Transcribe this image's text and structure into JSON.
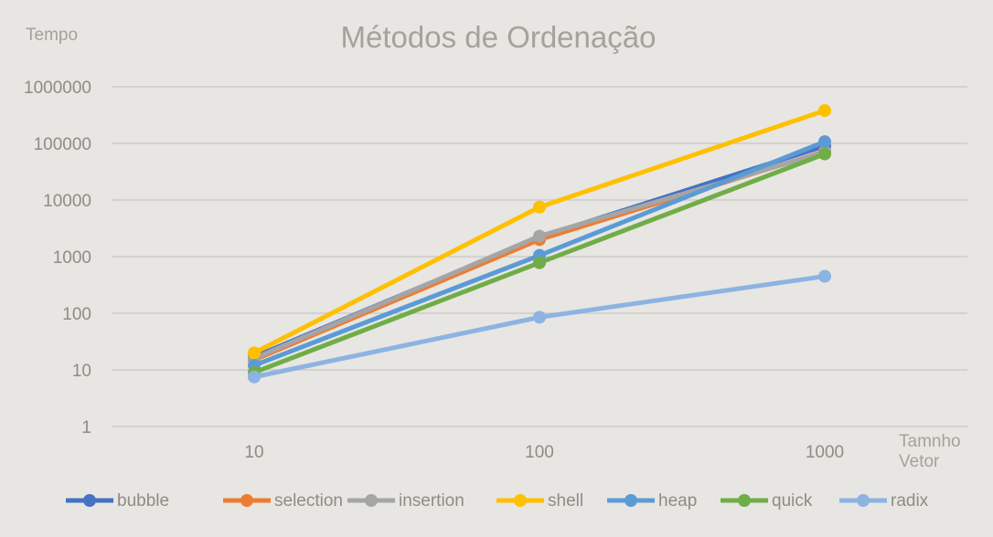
{
  "chart_data": {
    "type": "line",
    "title": "Métodos de Ordenação",
    "ylabel": "Tempo",
    "xlabel": [
      "Tamnho",
      "Vetor"
    ],
    "x": [
      "10",
      "100",
      "1000"
    ],
    "yscale": "log",
    "ylim": [
      1,
      1000000
    ],
    "yticks": [
      "1",
      "10",
      "100",
      "1000",
      "10000",
      "100000",
      "1000000"
    ],
    "grid": "horizontal",
    "legend": "bottom",
    "series": [
      {
        "name": "bubble",
        "color": "#4472c4",
        "values": [
          17,
          2200,
          90000
        ]
      },
      {
        "name": "selection",
        "color": "#ed7d31",
        "values": [
          15,
          2000,
          72000
        ]
      },
      {
        "name": "insertion",
        "color": "#a5a5a5",
        "values": [
          16,
          2300,
          70000
        ]
      },
      {
        "name": "shell",
        "color": "#ffc000",
        "values": [
          20,
          7500,
          380000
        ]
      },
      {
        "name": "heap",
        "color": "#5b9bd5",
        "values": [
          12,
          1050,
          107000
        ]
      },
      {
        "name": "quick",
        "color": "#70ad47",
        "values": [
          9,
          780,
          65000
        ]
      },
      {
        "name": "radix",
        "color": "#8db3e2",
        "values": [
          7.5,
          85,
          450
        ]
      }
    ]
  }
}
